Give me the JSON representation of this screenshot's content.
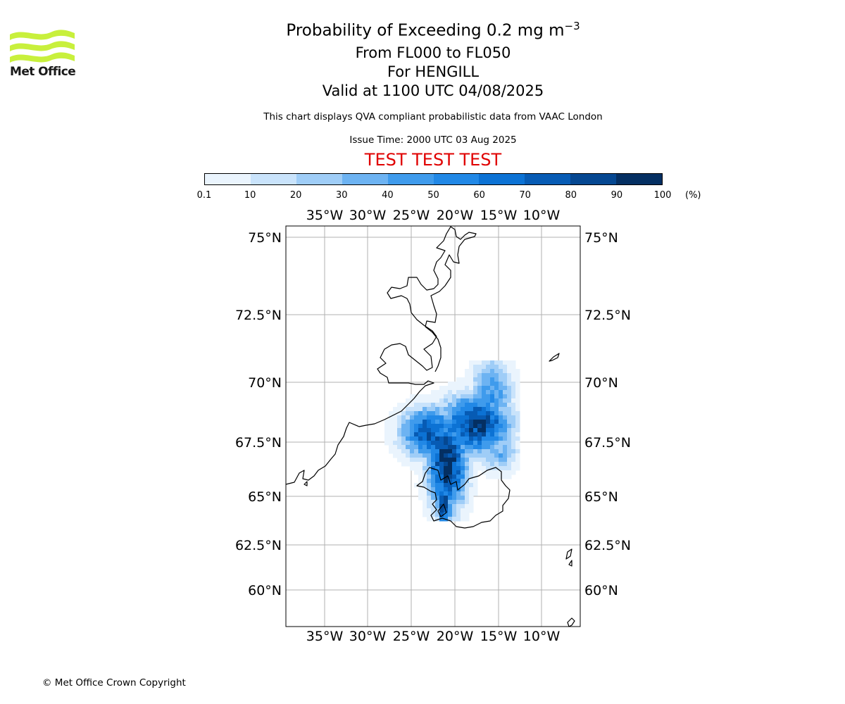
{
  "logo": {
    "text": "Met Office",
    "color": "#c8f03c"
  },
  "title": {
    "line1_prefix": "Probability of Exceeding 0.2 mg m",
    "line1_sup": "−3",
    "line2": "From FL000 to FL050",
    "line3": "For HENGILL",
    "line4": "Valid at 1100 UTC 04/08/2025"
  },
  "description": "This chart displays QVA compliant probabilistic data from VAAC London",
  "issue_time": "Issue Time: 2000 UTC 03 Aug 2025",
  "test_banner": {
    "text": "TEST TEST TEST",
    "color": "#e00000"
  },
  "colorbar": {
    "ticks": [
      "0.1",
      "10",
      "20",
      "30",
      "40",
      "50",
      "60",
      "70",
      "80",
      "90",
      "100"
    ],
    "unit": "(%)",
    "colors": [
      "#eaf4fd",
      "#c9e3fb",
      "#9fcdf7",
      "#6db3f2",
      "#3f9bec",
      "#2188e6",
      "#0c72d4",
      "#075bb4",
      "#054791",
      "#042f62"
    ]
  },
  "map": {
    "lon_ticks": [
      "35°W",
      "30°W",
      "25°W",
      "20°W",
      "15°W",
      "10°W"
    ],
    "lat_ticks": [
      "75°N",
      "72.5°N",
      "70°N",
      "67.5°N",
      "65°N",
      "62.5°N",
      "60°N"
    ],
    "gridlines": true,
    "volcano": "HENGILL"
  },
  "copyright": "© Met Office Crown Copyright"
}
